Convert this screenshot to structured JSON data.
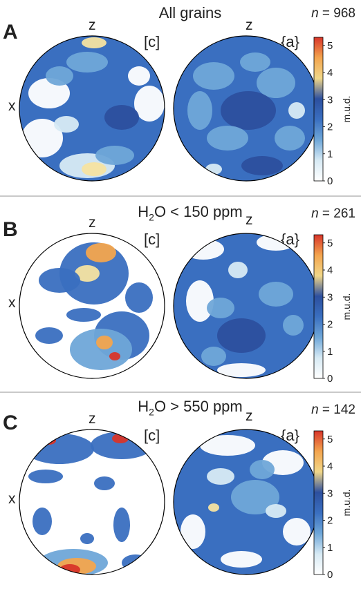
{
  "panels": [
    {
      "letter": "A",
      "title": "All grains",
      "title_has_subscript": false,
      "n_label": "n",
      "n_value": "= 968",
      "left_axis_top": "z",
      "left_axis_side": "x",
      "left_label": "[c]",
      "right_axis_top": "z",
      "right_label": "{a}",
      "colorbar_title": "m.u.d.",
      "colorbar_ticks": [
        "0",
        "1",
        "2",
        "3",
        "4",
        "5"
      ],
      "colorbar_max": 5.3
    },
    {
      "letter": "B",
      "title_pre": "H",
      "title_sub": "2",
      "title_post": "O < 150 ppm",
      "title_has_subscript": true,
      "n_label": "n",
      "n_value": "= 261",
      "left_axis_top": "z",
      "left_axis_side": "x",
      "left_label": "[c]",
      "right_axis_top": "z",
      "right_label": "{a}",
      "colorbar_title": "m.u.d.",
      "colorbar_ticks": [
        "0",
        "1",
        "2",
        "3",
        "4",
        "5"
      ],
      "colorbar_max": 5.3
    },
    {
      "letter": "C",
      "title_pre": "H",
      "title_sub": "2",
      "title_post": "O > 550 ppm",
      "title_has_subscript": true,
      "n_label": "n",
      "n_value": "= 142",
      "left_axis_top": "z",
      "left_axis_side": "x",
      "left_label": "[c]",
      "right_axis_top": "z",
      "right_label": "{a}",
      "colorbar_title": "m.u.d.",
      "colorbar_ticks": [
        "0",
        "1",
        "2",
        "3",
        "4",
        "5"
      ],
      "colorbar_max": 5.3
    }
  ],
  "colors": {
    "low": "#ffffff",
    "c1": "#2c4f9e",
    "c2": "#3a6fc0",
    "c3": "#6fa7d8",
    "c4": "#d7eaf4",
    "c5": "#f6e3a1",
    "c6": "#f3a54e",
    "c7": "#d8352a",
    "circle_stroke": "#000000"
  }
}
